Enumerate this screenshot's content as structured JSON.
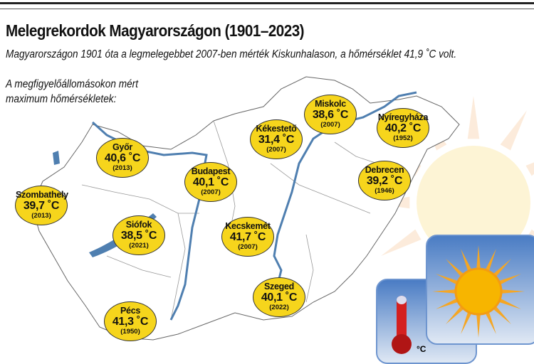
{
  "title": "Melegrekordok Magyarországon (1901–2023)",
  "subtitle": "Magyarországon 1901 óta a legmelegebbet 2007-ben mérték Kiskunhalason, a hőmérséklet 41,9 ˚C volt.",
  "label_line1": "A megfigyelőállomásokon mért",
  "label_line2": "maximum hőmérsékletek:",
  "colors": {
    "bubble": "#f6d51c",
    "river": "#4f7fb0",
    "tile": "#4a7cc4",
    "sun": "#f5a623"
  },
  "icons": [
    "sun-icon",
    "thermometer-icon"
  ],
  "thermo_unit": "°C",
  "cities": [
    {
      "name": "Győr",
      "temp": "40,6 ˚C",
      "year": "(2013)"
    },
    {
      "name": "Szombathely",
      "temp": "39,7 ˚C",
      "year": "(2013)"
    },
    {
      "name": "Siófok",
      "temp": "38,5 ˚C",
      "year": "(2021)"
    },
    {
      "name": "Pécs",
      "temp": "41,3 ˚C",
      "year": "(1950)"
    },
    {
      "name": "Budapest",
      "temp": "40,1 ˚C",
      "year": "(2007)"
    },
    {
      "name": "Kékestető",
      "temp": "31,4 ˚C",
      "year": "(2007)"
    },
    {
      "name": "Miskolc",
      "temp": "38,6 ˚C",
      "year": "(2007)"
    },
    {
      "name": "Nyíregyháza",
      "temp": "40,2 ˚C",
      "year": "(1952)"
    },
    {
      "name": "Debrecen",
      "temp": "39,2 ˚C",
      "year": "(1946)"
    },
    {
      "name": "Kecskemét",
      "temp": "41,7 ˚C",
      "year": "(2007)"
    },
    {
      "name": "Szeged",
      "temp": "40,1 ˚C",
      "year": "(2022)"
    }
  ]
}
